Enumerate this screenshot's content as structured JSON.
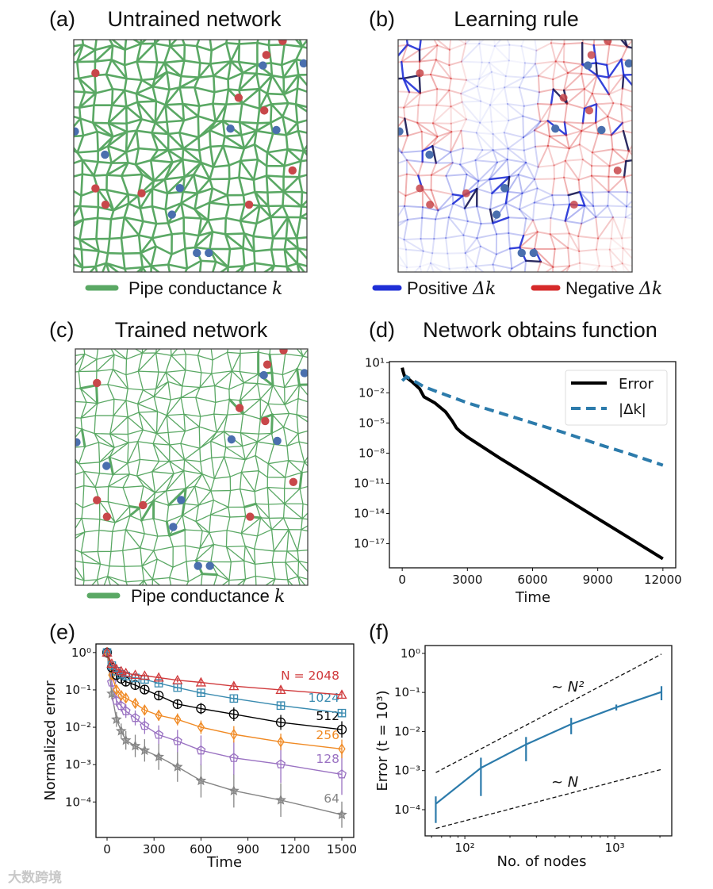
{
  "panels": {
    "a": {
      "label": "(a)",
      "title": "Untrained network",
      "legend": "Pipe conductance",
      "legend_symbol": "k",
      "edge_color": "#5aa864"
    },
    "b": {
      "label": "(b)",
      "title": "Learning rule",
      "legend_pos": "Positive",
      "legend_neg": "Negative",
      "legend_symbol": "Δk",
      "pos_color": "#1f2fd6",
      "neg_color": "#d62a2a"
    },
    "c": {
      "label": "(c)",
      "title": "Trained network",
      "legend": "Pipe conductance",
      "legend_symbol": "k",
      "edge_color": "#5aa864"
    },
    "d": {
      "label": "(d)",
      "title": "Network obtains function"
    },
    "e": {
      "label": "(e)"
    },
    "f": {
      "label": "(f)"
    }
  },
  "node_colors": {
    "red": "#c8474a",
    "blue": "#4a6fae"
  },
  "watermark": "大数跨境",
  "chart_data": [
    {
      "id": "d",
      "type": "line",
      "title": "Network obtains function",
      "xlabel": "Time",
      "ylabel": "",
      "yscale": "log",
      "xlim": [
        -590,
        12590
      ],
      "ylim_log10": [
        -19.4,
        1.1
      ],
      "xticks": [
        0,
        3000,
        6000,
        9000,
        12000
      ],
      "xtick_labels": [
        "0",
        "3000",
        "6000",
        "9000",
        "12000"
      ],
      "yticks_log10": [
        1,
        -2,
        -5,
        -8,
        -11,
        -14,
        -17
      ],
      "ytick_labels": [
        "10¹",
        "10⁻²",
        "10⁻⁵",
        "10⁻⁸",
        "10⁻¹¹",
        "10⁻¹⁴",
        "10⁻¹⁷"
      ],
      "legend_position": "top-right",
      "series": [
        {
          "name": "Error",
          "color": "#000000",
          "style": "solid",
          "x": [
            0,
            30,
            100,
            500,
            800,
            1000,
            1500,
            2000,
            2300,
            2500,
            2700,
            3000,
            4500,
            6000,
            7500,
            9000,
            10500,
            12000
          ],
          "log10_y": [
            0.5,
            0.2,
            -0.3,
            -1.0,
            -1.6,
            -2.4,
            -3.0,
            -3.9,
            -4.8,
            -5.5,
            -5.9,
            -6.4,
            -8.5,
            -10.5,
            -12.5,
            -14.5,
            -16.5,
            -18.5
          ]
        },
        {
          "name": "|Δk|",
          "color": "#2c7bab",
          "style": "dashed",
          "x": [
            0,
            200,
            1000,
            2000,
            2500,
            3000,
            4500,
            6000,
            7500,
            9000,
            10500,
            12000
          ],
          "log10_y": [
            -0.8,
            -0.4,
            -1.4,
            -2.2,
            -2.6,
            -3.0,
            -4.0,
            -5.0,
            -6.0,
            -7.1,
            -8.1,
            -9.2
          ]
        }
      ]
    },
    {
      "id": "e",
      "type": "line",
      "xlabel": "Time",
      "ylabel": "Normalized error",
      "yscale": "log",
      "xlim": [
        -71,
        1576
      ],
      "ylim_log10": [
        -4.95,
        0.23
      ],
      "xticks": [
        0,
        300,
        600,
        900,
        1200,
        1500
      ],
      "xtick_labels": [
        "0",
        "300",
        "600",
        "900",
        "1200",
        "1500"
      ],
      "yticks_log10": [
        0,
        -1,
        -2,
        -3,
        -4
      ],
      "ytick_labels": [
        "10⁰",
        "10⁻¹",
        "10⁻²",
        "10⁻³",
        "10⁻⁴"
      ],
      "x": [
        0,
        30,
        60,
        90,
        120,
        180,
        240,
        330,
        450,
        600,
        810,
        1110,
        1500
      ],
      "series": [
        {
          "name": "N = 2048",
          "label": "N = 2048",
          "color": "#d0393b",
          "marker": "triangle",
          "log10_y": [
            0,
            -0.3,
            -0.44,
            -0.5,
            -0.55,
            -0.6,
            -0.62,
            -0.67,
            -0.74,
            -0.8,
            -0.9,
            -1.0,
            -1.13
          ],
          "log10_err": [
            0,
            0.05,
            0.05,
            0.05,
            0.05,
            0.05,
            0.05,
            0.06,
            0.06,
            0.07,
            0.08,
            0.09,
            0.1
          ]
        },
        {
          "name": "1024",
          "label": "1024",
          "color": "#3a8bb0",
          "marker": "square",
          "log10_y": [
            0,
            -0.35,
            -0.5,
            -0.58,
            -0.63,
            -0.68,
            -0.72,
            -0.82,
            -0.94,
            -1.08,
            -1.23,
            -1.42,
            -1.62
          ],
          "log10_err": [
            0,
            0.05,
            0.05,
            0.05,
            0.05,
            0.05,
            0.06,
            0.06,
            0.06,
            0.07,
            0.07,
            0.08,
            0.08
          ]
        },
        {
          "name": "512",
          "label": "512",
          "color": "#000000",
          "marker": "circle",
          "log10_y": [
            0,
            -0.4,
            -0.6,
            -0.7,
            -0.78,
            -0.87,
            -0.99,
            -1.15,
            -1.38,
            -1.5,
            -1.65,
            -1.87,
            -2.06
          ],
          "log10_err": [
            0,
            0.06,
            0.07,
            0.08,
            0.08,
            0.1,
            0.1,
            0.1,
            0.12,
            0.15,
            0.18,
            0.2,
            0.22
          ]
        },
        {
          "name": "256",
          "label": "256",
          "color": "#f08a24",
          "marker": "diamond",
          "log10_y": [
            0,
            -0.6,
            -1.0,
            -1.15,
            -1.22,
            -1.36,
            -1.54,
            -1.68,
            -1.79,
            -2.0,
            -2.19,
            -2.39,
            -2.58
          ],
          "log10_err": [
            0,
            0.1,
            0.1,
            0.1,
            0.12,
            0.12,
            0.14,
            0.15,
            0.16,
            0.18,
            0.22,
            0.22,
            0.25
          ]
        },
        {
          "name": "128",
          "label": "128",
          "color": "#9a72c2",
          "marker": "pentagon",
          "log10_y": [
            0,
            -0.8,
            -1.29,
            -1.43,
            -1.57,
            -1.75,
            -1.96,
            -2.2,
            -2.37,
            -2.62,
            -2.82,
            -2.99,
            -3.26
          ],
          "log10_err": [
            0,
            0.12,
            0.15,
            0.15,
            0.18,
            0.2,
            0.22,
            0.25,
            0.3,
            0.4,
            0.45,
            0.5,
            0.55
          ]
        },
        {
          "name": "64",
          "label": "64",
          "color": "#858585",
          "marker": "star",
          "log10_y": [
            0,
            -1.1,
            -1.79,
            -2.1,
            -2.35,
            -2.5,
            -2.62,
            -2.79,
            -3.06,
            -3.43,
            -3.7,
            -3.95,
            -4.34
          ],
          "log10_err": [
            0,
            0.15,
            0.2,
            0.2,
            0.25,
            0.3,
            0.3,
            0.35,
            0.4,
            0.45,
            0.45,
            0.45,
            0.35
          ]
        }
      ]
    },
    {
      "id": "f",
      "type": "line",
      "xlabel": "No. of nodes",
      "ylabel": "Error (t = 10³)",
      "xscale": "log",
      "yscale": "log",
      "xlim_log10": [
        1.735,
        3.38
      ],
      "ylim_log10": [
        -4.67,
        0.2
      ],
      "xticks_log10": [
        2,
        3
      ],
      "xtick_labels": [
        "10²",
        "10³"
      ],
      "yticks_log10": [
        0,
        -1,
        -2,
        -3,
        -4
      ],
      "ytick_labels": [
        "10⁰",
        "10⁻¹",
        "10⁻²",
        "10⁻³",
        "10⁻⁴"
      ],
      "series": [
        {
          "name": "Error",
          "color": "#2c7bab",
          "x": [
            64,
            128,
            256,
            512,
            1024,
            2048
          ],
          "log10_y": [
            -3.85,
            -2.93,
            -2.33,
            -1.81,
            -1.38,
            -0.99
          ],
          "log10_err_high": [
            -3.66,
            -2.67,
            -2.14,
            -1.65,
            -1.31,
            -0.84
          ],
          "log10_err_low": [
            -4.34,
            -3.65,
            -2.76,
            -2.07,
            -1.46,
            -1.2
          ]
        }
      ],
      "guides": [
        {
          "label": "~ N²",
          "x": [
            64,
            2048
          ],
          "log10_y": [
            -3.05,
            -0.02
          ]
        },
        {
          "label": "~ N",
          "x": [
            64,
            2048
          ],
          "log10_y": [
            -4.48,
            -2.97
          ]
        }
      ]
    }
  ]
}
